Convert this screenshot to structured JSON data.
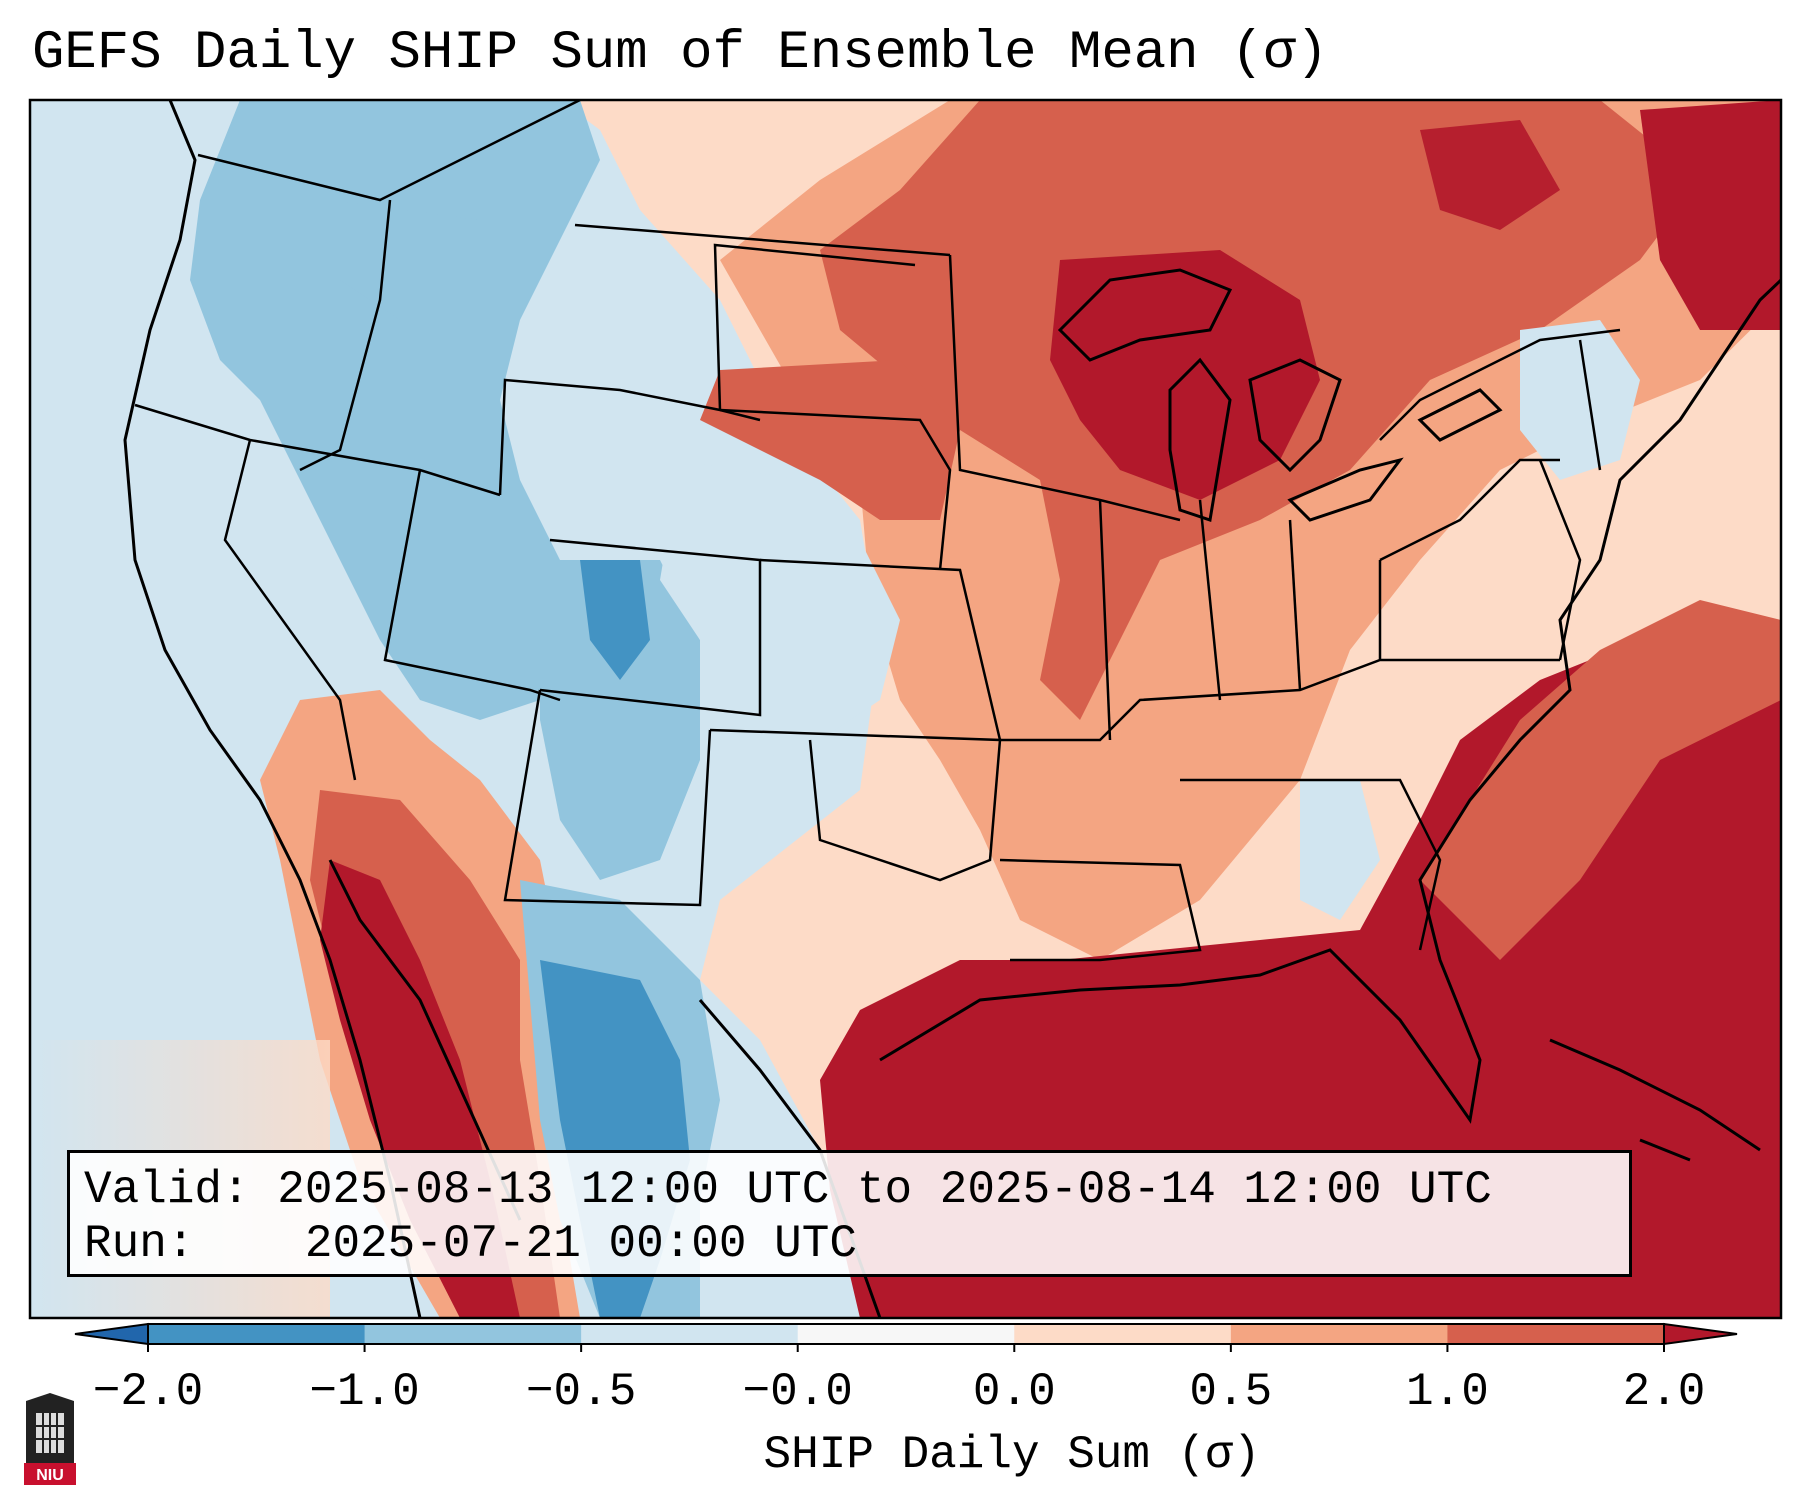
{
  "title": "GEFS Daily SHIP Sum of Ensemble Mean (σ)",
  "info": {
    "valid_label": "Valid:",
    "valid_value": "2025-08-13 12:00 UTC to 2025-08-14 12:00 UTC",
    "run_label": "Run:",
    "run_value": "2025-07-21 00:00 UTC"
  },
  "colorbar": {
    "label": "SHIP Daily Sum (σ)",
    "ticks": [
      "−2.0",
      "−1.0",
      "−0.5",
      "−0.0",
      "0.0",
      "0.5",
      "1.0",
      "2.0"
    ],
    "bins": [
      {
        "from": -2.0,
        "to": -1.0,
        "color": "#4393c3"
      },
      {
        "from": -1.0,
        "to": -0.5,
        "color": "#92c5de"
      },
      {
        "from": -0.5,
        "to": 0.0,
        "color": "#d1e5f0"
      },
      {
        "from": 0.0,
        "to": 0.0,
        "color": "#f7f7f7"
      },
      {
        "from": 0.0,
        "to": 0.5,
        "color": "#fddbc7"
      },
      {
        "from": 0.5,
        "to": 1.0,
        "color": "#f4a582"
      },
      {
        "from": 1.0,
        "to": 2.0,
        "color": "#d6604d"
      }
    ],
    "under_color": "#2166ac",
    "over_color": "#b2182b"
  },
  "logo": {
    "text": "NIU"
  },
  "colors": {
    "ocean": "#d1e5f0",
    "border": "#000000"
  }
}
